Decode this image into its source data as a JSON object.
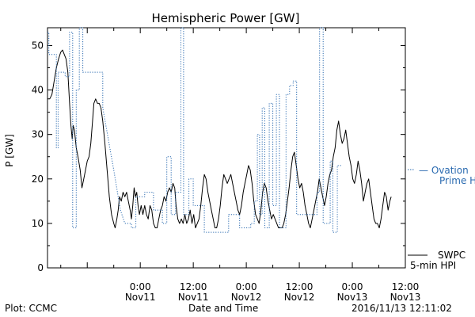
{
  "chart_data": {
    "type": "line",
    "title": "Hemispheric Power [GW]",
    "xlabel": "Date and Time",
    "ylabel": "P [GW]",
    "ylim": [
      0,
      54
    ],
    "yticks": [
      0,
      10,
      20,
      30,
      40,
      50
    ],
    "xlim_hours": [
      -21,
      36
    ],
    "xticks": [
      {
        "hour": 0,
        "line1": "0:00",
        "line2": "Nov11"
      },
      {
        "hour": 12,
        "line1": "12:00",
        "line2": "Nov11"
      },
      {
        "hour": 24,
        "line1": "0:00",
        "line2": "Nov12"
      },
      {
        "hour": 36,
        "line1": "12:00",
        "line2": "Nov12"
      },
      {
        "hour": 48,
        "line1": "0:00",
        "line2": "Nov13"
      },
      {
        "hour": 60,
        "line1": "12:00",
        "line2": "Nov13"
      }
    ],
    "x_range": [
      "2016-11-10 03:00",
      "2016-11-13 12:00"
    ],
    "legend": {
      "position": "right",
      "ovation": {
        "line1": "— Ovation",
        "line2": "Prime HPI",
        "color": "#2a6ab0"
      },
      "swpc": {
        "line1": "SWPC",
        "line2": "5-min HPI",
        "color": "#000000"
      }
    },
    "series": [
      {
        "name": "SWPC 5-min HPI",
        "style": "solid",
        "color": "#000000",
        "points": [
          [
            -21,
            38
          ],
          [
            -20.5,
            38
          ],
          [
            -20,
            39
          ],
          [
            -19.5,
            42
          ],
          [
            -19,
            45
          ],
          [
            -18.5,
            47
          ],
          [
            -18,
            48.5
          ],
          [
            -17.6,
            49
          ],
          [
            -17.2,
            48
          ],
          [
            -16.8,
            47
          ],
          [
            -16.4,
            44
          ],
          [
            -16,
            37
          ],
          [
            -15.7,
            32
          ],
          [
            -15.4,
            29
          ],
          [
            -15.2,
            32
          ],
          [
            -14.9,
            31
          ],
          [
            -14.5,
            27
          ],
          [
            -14.1,
            25
          ],
          [
            -13.6,
            22
          ],
          [
            -13.2,
            18
          ],
          [
            -12.8,
            20
          ],
          [
            -12.4,
            22
          ],
          [
            -12,
            24
          ],
          [
            -11.6,
            25
          ],
          [
            -11.2,
            28
          ],
          [
            -10.8,
            33
          ],
          [
            -10.5,
            37
          ],
          [
            -10.1,
            38
          ],
          [
            -9.7,
            37
          ],
          [
            -9.3,
            37
          ],
          [
            -8.9,
            36
          ],
          [
            -8.5,
            33
          ],
          [
            -8,
            28
          ],
          [
            -7.5,
            22
          ],
          [
            -7,
            16
          ],
          [
            -6.5,
            12
          ],
          [
            -6,
            10
          ],
          [
            -5.7,
            9
          ],
          [
            -5.3,
            11
          ],
          [
            -5,
            13
          ],
          [
            -4.7,
            16
          ],
          [
            -4.3,
            15
          ],
          [
            -3.9,
            17
          ],
          [
            -3.5,
            16
          ],
          [
            -3.1,
            17
          ],
          [
            -2.7,
            15
          ],
          [
            -2.3,
            13
          ],
          [
            -2,
            11
          ],
          [
            -1.7,
            14
          ],
          [
            -1.4,
            18
          ],
          [
            -1.1,
            16
          ],
          [
            -0.8,
            17
          ],
          [
            -0.5,
            14
          ],
          [
            -0.2,
            12
          ],
          [
            0.2,
            14
          ],
          [
            0.6,
            12
          ],
          [
            1,
            14
          ],
          [
            1.4,
            12
          ],
          [
            1.8,
            11
          ],
          [
            2.2,
            14
          ],
          [
            2.6,
            13
          ],
          [
            3,
            10
          ],
          [
            3.4,
            9
          ],
          [
            3.8,
            9
          ],
          [
            4.2,
            11
          ],
          [
            4.6,
            13
          ],
          [
            5,
            14
          ],
          [
            5.4,
            16
          ],
          [
            5.8,
            15
          ],
          [
            6.2,
            17
          ],
          [
            6.6,
            18
          ],
          [
            7,
            17
          ],
          [
            7.4,
            19
          ],
          [
            7.8,
            18
          ],
          [
            8.1,
            14
          ],
          [
            8.5,
            11
          ],
          [
            8.9,
            10
          ],
          [
            9.3,
            11
          ],
          [
            9.7,
            10
          ],
          [
            10.1,
            12
          ],
          [
            10.5,
            10
          ],
          [
            10.9,
            11
          ],
          [
            11.3,
            13
          ],
          [
            11.7,
            10
          ],
          [
            12.1,
            12
          ],
          [
            12.5,
            9
          ],
          [
            12.9,
            10
          ],
          [
            13.3,
            11
          ],
          [
            13.7,
            14
          ],
          [
            14.1,
            18
          ],
          [
            14.5,
            21
          ],
          [
            14.9,
            20
          ],
          [
            15.3,
            17
          ],
          [
            15.7,
            15
          ],
          [
            16.1,
            13
          ],
          [
            16.5,
            11
          ],
          [
            16.9,
            9
          ],
          [
            17.3,
            9
          ],
          [
            17.7,
            11
          ],
          [
            18.1,
            14
          ],
          [
            18.5,
            18
          ],
          [
            18.9,
            21
          ],
          [
            19.3,
            20
          ],
          [
            19.7,
            19
          ],
          [
            20.1,
            20
          ],
          [
            20.5,
            21
          ],
          [
            20.9,
            19
          ],
          [
            21.3,
            17
          ],
          [
            21.7,
            15
          ],
          [
            22.1,
            13
          ],
          [
            22.5,
            12
          ],
          [
            22.9,
            14
          ],
          [
            23.3,
            17
          ],
          [
            23.7,
            19
          ],
          [
            24.1,
            21
          ],
          [
            24.5,
            23
          ],
          [
            24.9,
            22
          ],
          [
            25.3,
            19
          ],
          [
            25.7,
            15
          ],
          [
            26.1,
            12
          ],
          [
            26.5,
            11
          ],
          [
            26.9,
            10
          ],
          [
            27.3,
            13
          ],
          [
            27.7,
            17
          ],
          [
            28.1,
            19
          ],
          [
            28.5,
            18
          ],
          [
            28.9,
            15
          ],
          [
            29.3,
            13
          ],
          [
            29.7,
            11
          ],
          [
            30.1,
            12
          ],
          [
            30.5,
            11
          ],
          [
            30.9,
            10
          ],
          [
            31.3,
            9
          ],
          [
            31.7,
            9
          ],
          [
            32.1,
            9
          ],
          [
            32.5,
            10
          ],
          [
            32.9,
            12
          ],
          [
            33.3,
            15
          ],
          [
            33.7,
            18
          ],
          [
            34.1,
            22
          ],
          [
            34.5,
            25
          ],
          [
            34.9,
            26
          ],
          [
            35.3,
            23
          ],
          [
            35.7,
            20
          ],
          [
            36.1,
            18
          ],
          [
            36.5,
            19
          ],
          [
            36.9,
            17
          ],
          [
            37.3,
            14
          ],
          [
            37.7,
            12
          ],
          [
            38.1,
            10
          ],
          [
            38.5,
            9
          ],
          [
            38.9,
            11
          ],
          [
            39.3,
            13
          ],
          [
            39.7,
            15
          ],
          [
            40.1,
            17
          ],
          [
            40.5,
            20
          ],
          [
            40.9,
            18
          ],
          [
            41.3,
            16
          ],
          [
            41.7,
            14
          ],
          [
            42.1,
            16
          ],
          [
            42.5,
            19
          ],
          [
            42.9,
            21
          ],
          [
            43.3,
            22
          ],
          [
            43.7,
            25
          ],
          [
            44.1,
            27
          ],
          [
            44.5,
            31
          ],
          [
            44.9,
            33
          ],
          [
            45.3,
            30
          ],
          [
            45.7,
            28
          ],
          [
            46.1,
            29
          ],
          [
            46.5,
            31
          ],
          [
            46.9,
            28
          ],
          [
            47.3,
            25
          ],
          [
            47.7,
            23
          ],
          [
            48.1,
            20
          ],
          [
            48.5,
            19
          ],
          [
            48.9,
            21
          ],
          [
            49.3,
            24
          ],
          [
            49.7,
            22
          ],
          [
            50.1,
            19
          ],
          [
            50.5,
            15
          ],
          [
            50.9,
            17
          ],
          [
            51.3,
            19
          ],
          [
            51.7,
            20
          ],
          [
            52.1,
            17
          ],
          [
            52.5,
            14
          ],
          [
            52.9,
            11
          ],
          [
            53.3,
            10
          ],
          [
            53.7,
            10
          ],
          [
            54.1,
            9
          ],
          [
            54.5,
            11
          ],
          [
            54.9,
            14
          ],
          [
            55.3,
            17
          ],
          [
            55.7,
            16
          ],
          [
            56.1,
            13
          ],
          [
            56.5,
            15
          ],
          [
            56.8,
            16
          ]
        ]
      },
      {
        "name": "Ovation Prime HPI",
        "style": "dotted",
        "color": "#2a6ab0",
        "points": [
          [
            -21,
            53
          ],
          [
            -20.7,
            53
          ],
          [
            -20.7,
            48
          ],
          [
            -19,
            48
          ],
          [
            -19,
            27
          ],
          [
            -18.6,
            27
          ],
          [
            -18.6,
            44
          ],
          [
            -17,
            44
          ],
          [
            -17,
            43
          ],
          [
            -16,
            43
          ],
          [
            -16,
            53
          ],
          [
            -15.3,
            53
          ],
          [
            -15.3,
            9
          ],
          [
            -14.5,
            9
          ],
          [
            -14.5,
            40
          ],
          [
            -13.8,
            40
          ],
          [
            -13.8,
            54
          ],
          [
            -13,
            54
          ],
          [
            -13,
            44
          ],
          [
            -8.5,
            44
          ],
          [
            -8.5,
            36
          ],
          [
            -6,
            22
          ],
          [
            -4.5,
            13
          ],
          [
            -3.5,
            10
          ],
          [
            -2,
            10
          ],
          [
            -2,
            9
          ],
          [
            -1,
            9
          ],
          [
            -1,
            16
          ],
          [
            1,
            16
          ],
          [
            1,
            17
          ],
          [
            3,
            17
          ],
          [
            3,
            13
          ],
          [
            5,
            13
          ],
          [
            5,
            10
          ],
          [
            6,
            10
          ],
          [
            6,
            25
          ],
          [
            7,
            25
          ],
          [
            7,
            12
          ],
          [
            8,
            12
          ],
          [
            8,
            17
          ],
          [
            9.2,
            17
          ],
          [
            9.2,
            54
          ],
          [
            9.8,
            54
          ],
          [
            9.8,
            12
          ],
          [
            11,
            12
          ],
          [
            11,
            20
          ],
          [
            12,
            20
          ],
          [
            12,
            14
          ],
          [
            14.5,
            14
          ],
          [
            14.5,
            8
          ],
          [
            20,
            8
          ],
          [
            20,
            12
          ],
          [
            22.5,
            12
          ],
          [
            22.5,
            9
          ],
          [
            25,
            9
          ],
          [
            25,
            10
          ],
          [
            25.8,
            10
          ],
          [
            25.8,
            15
          ],
          [
            26.5,
            15
          ],
          [
            26.5,
            30
          ],
          [
            27,
            30
          ],
          [
            27,
            12
          ],
          [
            27.6,
            12
          ],
          [
            27.6,
            36
          ],
          [
            28.2,
            36
          ],
          [
            28.2,
            9
          ],
          [
            29.2,
            9
          ],
          [
            29.2,
            37
          ],
          [
            30,
            37
          ],
          [
            30,
            14
          ],
          [
            30.8,
            14
          ],
          [
            30.8,
            39
          ],
          [
            31.5,
            39
          ],
          [
            31.5,
            9
          ],
          [
            33,
            9
          ],
          [
            33,
            39
          ],
          [
            33.8,
            39
          ],
          [
            33.8,
            41
          ],
          [
            34.6,
            41
          ],
          [
            34.6,
            42
          ],
          [
            35.4,
            42
          ],
          [
            35.4,
            12
          ],
          [
            40,
            12
          ],
          [
            40,
            17
          ],
          [
            40.6,
            17
          ],
          [
            40.6,
            54
          ],
          [
            41.4,
            54
          ],
          [
            41.4,
            10
          ],
          [
            43,
            10
          ],
          [
            43,
            24
          ],
          [
            43.6,
            24
          ],
          [
            43.6,
            8
          ],
          [
            44.6,
            8
          ],
          [
            44.6,
            23
          ],
          [
            45.5,
            23
          ],
          [
            45.5,
            23
          ]
        ]
      }
    ]
  },
  "footer": {
    "left": "Plot: CCMC",
    "center": "Date and Time",
    "right": "2016/11/13 12:11:02"
  }
}
